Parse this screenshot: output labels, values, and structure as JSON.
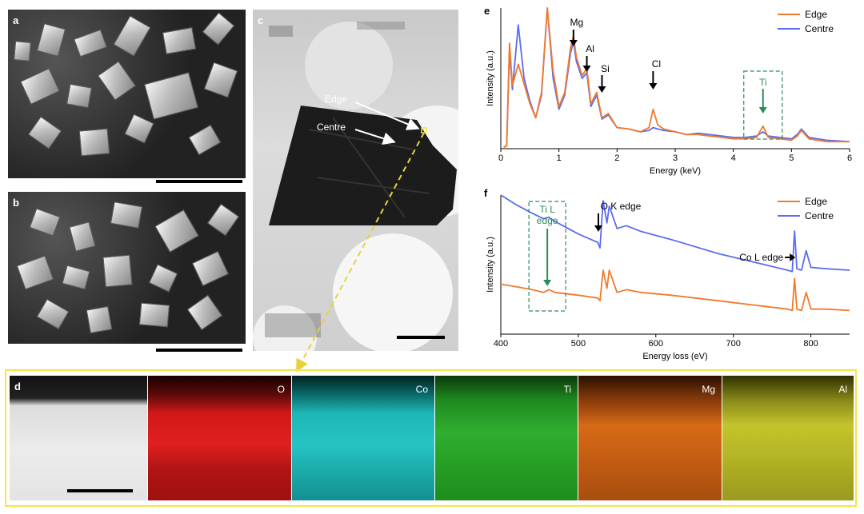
{
  "panels": {
    "a": {
      "label": "a"
    },
    "b": {
      "label": "b"
    },
    "c": {
      "label": "c",
      "edge_label": "Edge",
      "centre_label": "Centre"
    },
    "d": {
      "label": "d",
      "maps": [
        "O",
        "Co",
        "Ti",
        "Mg",
        "Al"
      ]
    },
    "e": {
      "label": "e"
    },
    "f": {
      "label": "f"
    }
  },
  "colors": {
    "edge": "#f07a2c",
    "centre": "#5b6cf0",
    "annotation_green": "#2e8b57",
    "frame_yellow": "#f2e64a"
  },
  "chart_data": [
    {
      "panel": "e",
      "type": "line",
      "xlabel": "Energy (keV)",
      "ylabel": "Intensity (a.u.)",
      "xlim": [
        0,
        6
      ],
      "ylim": [
        0,
        100
      ],
      "xticks": [
        "0",
        "1",
        "2",
        "3",
        "4",
        "5",
        "6"
      ],
      "legend": "top-right",
      "series": [
        {
          "name": "Edge",
          "color": "#f07a2c",
          "x": [
            0.05,
            0.1,
            0.15,
            0.2,
            0.3,
            0.4,
            0.5,
            0.6,
            0.7,
            0.8,
            0.9,
            1.0,
            1.1,
            1.2,
            1.25,
            1.3,
            1.4,
            1.48,
            1.55,
            1.65,
            1.74,
            1.85,
            2.0,
            2.2,
            2.4,
            2.55,
            2.62,
            2.7,
            2.8,
            3.0,
            3.2,
            3.4,
            3.6,
            3.8,
            4.0,
            4.2,
            4.4,
            4.51,
            4.6,
            4.8,
            5.0,
            5.1,
            5.17,
            5.3,
            5.6,
            6.0
          ],
          "y": [
            1,
            2,
            75,
            45,
            60,
            46,
            32,
            22,
            40,
            100,
            55,
            30,
            40,
            72,
            80,
            65,
            52,
            57,
            32,
            40,
            22,
            25,
            15,
            14,
            12,
            15,
            28,
            17,
            14,
            12,
            10,
            10,
            9,
            8,
            7,
            7,
            8,
            16,
            8,
            7,
            6,
            9,
            13,
            7,
            5,
            5
          ]
        },
        {
          "name": "Centre",
          "color": "#5b6cf0",
          "x": [
            0.05,
            0.1,
            0.15,
            0.2,
            0.3,
            0.4,
            0.5,
            0.6,
            0.7,
            0.8,
            0.9,
            1.0,
            1.1,
            1.2,
            1.25,
            1.3,
            1.4,
            1.48,
            1.55,
            1.65,
            1.74,
            1.85,
            2.0,
            2.2,
            2.4,
            2.55,
            2.62,
            2.7,
            2.8,
            3.0,
            3.2,
            3.4,
            3.6,
            3.8,
            4.0,
            4.2,
            4.4,
            4.51,
            4.6,
            4.8,
            5.0,
            5.1,
            5.17,
            5.3,
            5.6,
            6.0
          ],
          "y": [
            1,
            2,
            70,
            42,
            88,
            50,
            34,
            22,
            38,
            100,
            50,
            28,
            38,
            68,
            76,
            62,
            50,
            54,
            30,
            38,
            21,
            24,
            15,
            14,
            12,
            13,
            15,
            14,
            13,
            12,
            10,
            11,
            10,
            9,
            8,
            8,
            9,
            12,
            9,
            8,
            7,
            10,
            14,
            8,
            6,
            5
          ]
        }
      ],
      "annotations": [
        {
          "text": "Mg",
          "x": 1.25
        },
        {
          "text": "Al",
          "x": 1.48
        },
        {
          "text": "Si",
          "x": 1.74
        },
        {
          "text": "Cl",
          "x": 2.62
        },
        {
          "text": "Ti",
          "x": 4.51
        }
      ]
    },
    {
      "panel": "f",
      "type": "line",
      "xlabel": "Energy loss (eV)",
      "ylabel": "Intensity (a.u.)",
      "xlim": [
        400,
        850
      ],
      "ylim": [
        0,
        100
      ],
      "xticks": [
        "400",
        "500",
        "600",
        "700",
        "800"
      ],
      "legend": "top-right",
      "series": [
        {
          "name": "Edge",
          "color": "#f07a2c",
          "x": [
            400,
            420,
            440,
            455,
            462,
            470,
            500,
            525,
            528,
            532,
            537,
            540,
            550,
            562,
            580,
            620,
            680,
            740,
            770,
            776,
            779,
            782,
            788,
            794,
            800,
            820,
            850
          ],
          "y": [
            36,
            34,
            32,
            30,
            32,
            30,
            28,
            26,
            24,
            46,
            33,
            46,
            30,
            32,
            30,
            28,
            24,
            20,
            18,
            17,
            40,
            18,
            17,
            30,
            18,
            18,
            17
          ]
        },
        {
          "name": "Centre",
          "color": "#5b6cf0",
          "x": [
            400,
            420,
            440,
            455,
            462,
            470,
            500,
            525,
            528,
            532,
            537,
            540,
            550,
            562,
            580,
            620,
            680,
            740,
            770,
            776,
            779,
            782,
            788,
            794,
            800,
            820,
            850
          ],
          "y": [
            100,
            93,
            87,
            83,
            84,
            81,
            72,
            66,
            62,
            96,
            80,
            92,
            76,
            78,
            74,
            68,
            58,
            50,
            46,
            45,
            74,
            47,
            46,
            60,
            48,
            47,
            46
          ]
        }
      ],
      "annotations": [
        {
          "text": "Ti L",
          "text2": "edge",
          "x": 460
        },
        {
          "text": "O K edge",
          "x": 530
        },
        {
          "text": "Co L edge",
          "x": 779
        }
      ]
    }
  ]
}
